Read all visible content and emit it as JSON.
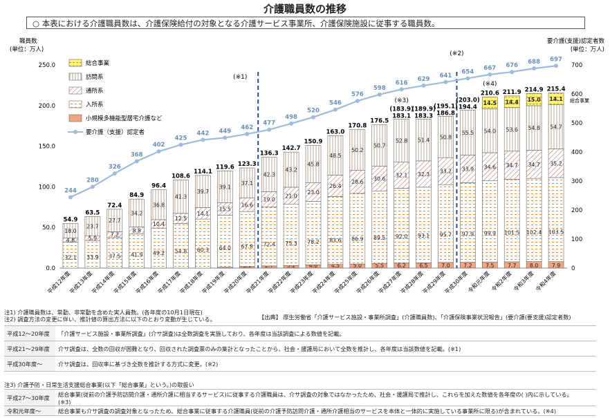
{
  "title": "介護職員数の推移",
  "note_box": "○ 本表における介護職員数は、介護保険給付の対象となる介護サービス事業所、介護保険施設に従事する職員数。",
  "chart_data": {
    "type": "bar",
    "left_axis": {
      "label": "職員数",
      "unit": "(単位：万人)",
      "ylim": [
        0,
        250
      ],
      "ticks": [
        "0.0",
        "50.0",
        "100.0",
        "150.0",
        "200.0",
        "250.0"
      ]
    },
    "right_axis": {
      "label": "要介護(支援)認定者数",
      "unit": "(単位：万人)",
      "ylim": [
        0,
        700
      ],
      "ticks": [
        "0",
        "100",
        "200",
        "300",
        "400",
        "500",
        "600",
        "700"
      ]
    },
    "categories": [
      "平成12年度",
      "平成13年度",
      "平成14年度",
      "平成15年度",
      "平成16年度",
      "平成17年度",
      "平成18年度",
      "平成19年度",
      "平成20年度",
      "平成21年度",
      "平成22年度",
      "平成23年度",
      "平成24年度",
      "平成25年度",
      "平成26年度",
      "平成27年度",
      "平成28年度",
      "平成29年度",
      "平成30年度",
      "令和元年度",
      "令和2年度",
      "令和3年度",
      "令和4年度"
    ],
    "series": [
      {
        "name": "小規模多機能型居宅介護など",
        "values": [
          null,
          null,
          null,
          null,
          null,
          null,
          null,
          1.0,
          1.8,
          2.7,
          3.2,
          4.0,
          4.5,
          5.0,
          5.5,
          6.2,
          6.5,
          7.0,
          7.2,
          7.5,
          7.7,
          8.0,
          7.9
        ],
        "labels": [
          "",
          "",
          "",
          "",
          "",
          "",
          "",
          "1.0",
          "1.8",
          "2.7",
          "3.2",
          "4.0",
          "4.5",
          "5.0",
          "5.5",
          "6.2",
          "6.5",
          "7.0",
          "7.2",
          "7.5",
          "7.7",
          "8.0",
          "7.9"
        ]
      },
      {
        "name": "入所系",
        "values": [
          32.1,
          33.9,
          37.5,
          41.9,
          49.2,
          54.8,
          60.3,
          64.0,
          67.8,
          72.4,
          75.3,
          78.2,
          83.6,
          86.9,
          89.5,
          92.0,
          93.1,
          95.7,
          97.9,
          99.9,
          101.5,
          102.4,
          103.5
        ],
        "labels": [
          "32.1",
          "33.9",
          "37.5",
          "41.9",
          "49.2",
          "54.8",
          "60.3",
          "64.0",
          "67.8",
          "72.4",
          "75.3",
          "78.2",
          "83.6",
          "86.9",
          "89.5",
          "92.0",
          "93.1",
          "95.7",
          "97.9",
          "99.9",
          "101.5",
          "102.4",
          "103.5"
        ]
      },
      {
        "name": "通所系",
        "values": [
          4.8,
          5.9,
          7.2,
          8.8,
          10.4,
          12.5,
          14.1,
          15.5,
          16.6,
          19.0,
          21.0,
          23.0,
          26.4,
          28.6,
          30.6,
          32.1,
          32.3,
          33.2,
          33.9,
          34.6,
          34.7,
          34.7,
          35.2
        ],
        "labels": [
          "4.8",
          "5.9",
          "7.2",
          "8.8",
          "10.4",
          "12.5",
          "14.1",
          "15.5",
          "16.6",
          "19.0",
          "21.0",
          "23.0",
          "26.4",
          "28.6",
          "30.6",
          "32.1",
          "32.3",
          "33.2",
          "33.9",
          "34.6",
          "34.7",
          "34.7",
          "35.2"
        ]
      },
      {
        "name": "訪問系",
        "values": [
          18.0,
          23.7,
          27.7,
          34.2,
          36.8,
          41.3,
          39.7,
          39.1,
          37.1,
          42.3,
          43.2,
          45.8,
          48.5,
          50.2,
          50.7,
          52.8,
          51.4,
          50.8,
          55.5,
          54.0,
          53.6,
          54.8,
          54.7
        ],
        "labels": [
          "18.0",
          "23.7",
          "27.7",
          "34.2",
          "36.8",
          "41.3",
          "39.7",
          "39.1",
          "37.1",
          "42.3",
          "43.2",
          "45.8",
          "48.5",
          "50.2",
          "50.7",
          "52.8",
          "51.4",
          "50.8",
          "55.5",
          "54.0",
          "53.6",
          "54.8",
          "54.7"
        ]
      },
      {
        "name": "総合事業",
        "values": [
          null,
          null,
          null,
          null,
          null,
          null,
          null,
          null,
          null,
          null,
          null,
          null,
          null,
          null,
          null,
          null,
          null,
          null,
          null,
          14.5,
          14.4,
          15.0,
          14.1
        ],
        "labels": [
          "",
          "",
          "",
          "",
          "",
          "",
          "",
          "",
          "",
          "",
          "",
          "",
          "",
          "",
          "",
          "",
          "",
          "",
          "",
          "14.5",
          "14.4",
          "15.0",
          "14.1"
        ]
      }
    ],
    "totals": [
      "54.9",
      "63.5",
      "72.4",
      "84.9",
      "96.4",
      "108.6",
      "114.1",
      "119.6",
      "123.3",
      "136.3",
      "142.7",
      "150.9",
      "163.0",
      "170.8",
      "176.5",
      "183.1",
      "183.3",
      "186.8",
      "194.4",
      "210.6",
      "211.9",
      "214.9",
      "215.4"
    ],
    "paren_totals": {
      "15": "(183.9)",
      "16": "(189.9)",
      "17": "(195.1)",
      "18": "(203.0)"
    },
    "certified_line": {
      "name": "要介護(支援)認定者",
      "values": [
        244,
        280,
        326,
        368,
        402,
        425,
        442,
        449,
        462,
        477,
        498,
        520,
        546,
        576,
        598,
        616,
        629,
        641,
        654,
        667,
        676,
        688,
        697
      ]
    },
    "legend": [
      "総合事業",
      "訪問系",
      "通所系",
      "入所系",
      "小規模多機能型居宅介護など",
      "要介護（支援）認定者"
    ],
    "annotations": [
      "(※1)",
      "(※2)",
      "(※3)",
      "(※4)",
      "総合事業"
    ],
    "colors": {
      "line": "#9dbbdc",
      "line_label": "#6a8fb7",
      "divider": "#2f4f86",
      "sogo_fill": "#fff37a",
      "orange": "#e08a3c",
      "salmon": "#f0a090",
      "hatch": "#b55a5a"
    }
  },
  "notes": {
    "note1": "注1) 介護職員数は、常勤、非常勤を含めた実人員数。(各年度の10月1日現在)",
    "note2": "注2) 調査方法の変更に伴い、推計値の算出方法に以下のとおり変動が生じている。",
    "source": "【出典】 厚生労働省「介護サービス施設・事業所調査」(介護職員数)、「介護保険事業状況報告」(要介護(要支援)認定者数)",
    "periods": [
      {
        "period": "平成12〜20年度",
        "text": "「介護サービス施設・事業所調査」(介サ調査)は全数調査を実施しており、各年度は当該調査による数値を記載。"
      },
      {
        "period": "平成21〜29年度",
        "text": "介サ調査は、全数の回収が困難となり、回収された調査票のみの集計となったことから、社会・援護局において全数を推計し、各年度は当該数値を記載。(※1)"
      },
      {
        "period": "平成30年度〜",
        "text": "介サ調査は、回収率に基づき全数を推計する方式に変更。(※2)"
      }
    ],
    "note3": "注3) 介護予防・日常生活支援総合事業(以下「総合事業」という。)の取扱い",
    "sogo": [
      {
        "period": "平成27〜30年度",
        "text": "総合事業(従前の介護予防訪問介護・通所介護に相当するサービス)に従事する介護職員は、介サ調査の対象ではなかったため、社会・援護局で推計し、これらを加えた数値を各年度の( )内に示している。",
        "text2": "(※3)"
      },
      {
        "period": "令和元年度〜",
        "text": "総合事業も介サ調査の調査対象となったため、総合事業に従事する介護職員(従前の介護予防訪問介護・通所介護相当のサービスを本体と一体的に実施している事業所に限る)が含まれている。(※4)"
      }
    ]
  }
}
